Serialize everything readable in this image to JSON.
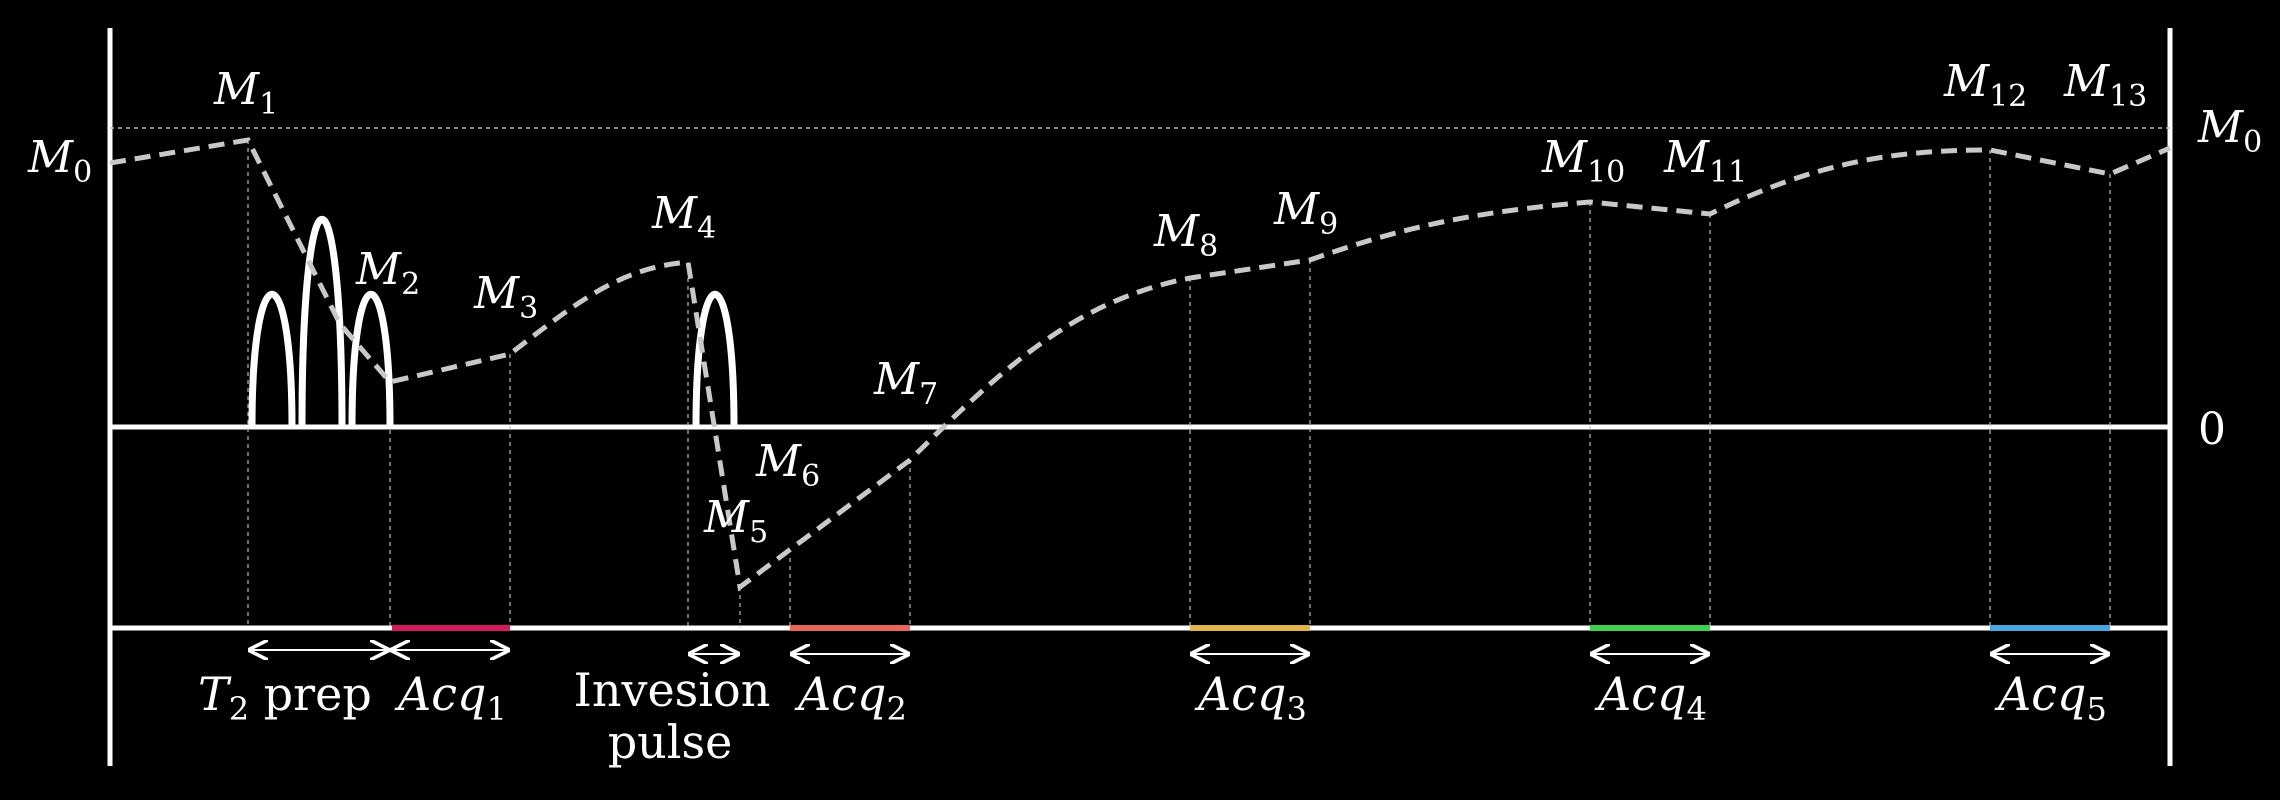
{
  "colors": {
    "background": "#000000",
    "foreground": "#ffffff",
    "curve": "#c8c8c8",
    "acq1": "#d01c5c",
    "acq2": "#e8655a",
    "acq3": "#e0b64a",
    "acq4": "#3fcf4c",
    "acq5": "#4aa6e0"
  },
  "axes": {
    "zero_label": "0",
    "m0_left": {
      "base": "M",
      "sub": "0"
    },
    "m0_right": {
      "base": "M",
      "sub": "0"
    }
  },
  "points": [
    {
      "base": "M",
      "sub": "1"
    },
    {
      "base": "M",
      "sub": "2"
    },
    {
      "base": "M",
      "sub": "3"
    },
    {
      "base": "M",
      "sub": "4"
    },
    {
      "base": "M",
      "sub": "5"
    },
    {
      "base": "M",
      "sub": "6"
    },
    {
      "base": "M",
      "sub": "7"
    },
    {
      "base": "M",
      "sub": "8"
    },
    {
      "base": "M",
      "sub": "9"
    },
    {
      "base": "M",
      "sub": "10"
    },
    {
      "base": "M",
      "sub": "11"
    },
    {
      "base": "M",
      "sub": "12"
    },
    {
      "base": "M",
      "sub": "13"
    }
  ],
  "intervals": {
    "t2prep": {
      "base": "T",
      "sub": "2",
      "suffix": " prep"
    },
    "acq1": {
      "base": "Acq",
      "sub": "1"
    },
    "inversion_line1": "Invesion",
    "inversion_line2": "pulse",
    "acq2": {
      "base": "Acq",
      "sub": "2"
    },
    "acq3": {
      "base": "Acq",
      "sub": "3"
    },
    "acq4": {
      "base": "Acq",
      "sub": "4"
    },
    "acq5": {
      "base": "Acq",
      "sub": "5"
    }
  }
}
